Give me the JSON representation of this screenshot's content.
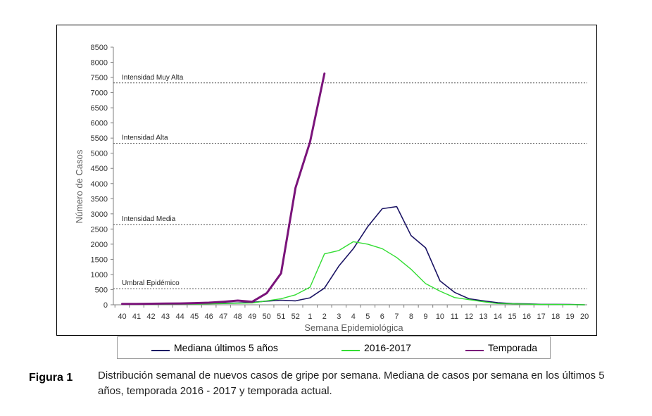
{
  "chart_data": {
    "type": "line",
    "xlabel": "Semana Epidemiológica",
    "ylabel": "Número de Casos",
    "ylim": [
      0,
      8500
    ],
    "yticks": [
      0,
      500,
      1000,
      1500,
      2000,
      2500,
      3000,
      3500,
      4000,
      4500,
      5000,
      5500,
      6000,
      6500,
      7000,
      7500,
      8000,
      8500
    ],
    "categories": [
      "40",
      "41",
      "42",
      "43",
      "44",
      "45",
      "46",
      "47",
      "48",
      "49",
      "50",
      "51",
      "52",
      "1",
      "2",
      "3",
      "4",
      "5",
      "6",
      "7",
      "8",
      "9",
      "10",
      "11",
      "12",
      "13",
      "14",
      "15",
      "16",
      "17",
      "18",
      "19",
      "20"
    ],
    "grid": false,
    "legend_position": "bottom",
    "thresholds": [
      {
        "label": "Umbral Epidémico",
        "value": 530
      },
      {
        "label": "Intensidad Media",
        "value": 2650
      },
      {
        "label": "Intensidad Alta",
        "value": 5330
      },
      {
        "label": "Intensidad Muy  Alta",
        "value": 7320
      }
    ],
    "series": [
      {
        "name": "Mediana últimos 5 años",
        "color": "#1b1464",
        "values": [
          20,
          20,
          25,
          25,
          30,
          35,
          40,
          50,
          60,
          80,
          120,
          150,
          130,
          230,
          550,
          1280,
          1850,
          2580,
          3170,
          3240,
          2280,
          1880,
          790,
          410,
          200,
          130,
          70,
          40,
          30,
          15,
          15,
          10,
          0
        ]
      },
      {
        "name": "2016-2017",
        "color": "#33dd33",
        "values": [
          10,
          10,
          15,
          15,
          20,
          25,
          30,
          40,
          50,
          60,
          130,
          200,
          330,
          580,
          1680,
          1790,
          2080,
          2000,
          1850,
          1560,
          1170,
          700,
          450,
          240,
          170,
          100,
          40,
          30,
          20,
          10,
          10,
          5,
          0
        ]
      },
      {
        "name": "Temporada",
        "color": "#7a137a",
        "values": [
          30,
          30,
          35,
          40,
          45,
          55,
          70,
          100,
          140,
          100,
          380,
          1040,
          3860,
          5370,
          7630,
          null,
          null,
          null,
          null,
          null,
          null,
          null,
          null,
          null,
          null,
          null,
          null,
          null,
          null,
          null,
          null,
          null,
          null
        ]
      }
    ]
  },
  "figure": {
    "label": "Figura 1",
    "caption": "Distribución semanal de nuevos casos de gripe por semana. Mediana de casos por semana en los últimos 5 años, temporada 2016 - 2017 y temporada actual."
  }
}
